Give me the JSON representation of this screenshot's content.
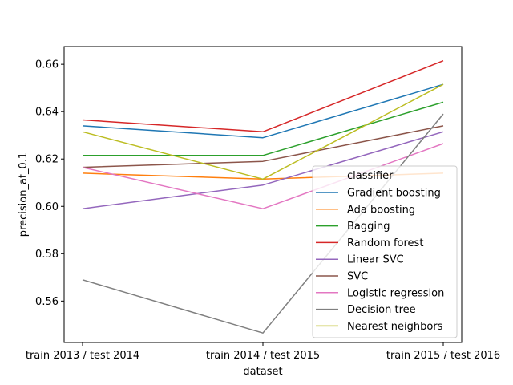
{
  "chart_data": {
    "type": "line",
    "title": "",
    "xlabel": "dataset",
    "ylabel": "precision_at_0.1",
    "categories": [
      "train 2013 / test 2014",
      "train 2014 / test 2015",
      "train 2015 / test 2016"
    ],
    "ylim": [
      0.5425,
      0.6675
    ],
    "yticks": [
      0.56,
      0.58,
      0.6,
      0.62,
      0.64,
      0.66
    ],
    "ytick_labels": [
      "0.56",
      "0.58",
      "0.60",
      "0.62",
      "0.64",
      "0.66"
    ],
    "grid": false,
    "legend_title": "classifier",
    "legend_position": "lower-right",
    "series": [
      {
        "name": "Gradient boosting",
        "color": "#1f77b4",
        "values": [
          0.634,
          0.629,
          0.6515
        ]
      },
      {
        "name": "Ada boosting",
        "color": "#ff7f0e",
        "values": [
          0.614,
          0.6115,
          0.614
        ]
      },
      {
        "name": "Bagging",
        "color": "#2ca02c",
        "values": [
          0.6215,
          0.6215,
          0.644
        ]
      },
      {
        "name": "Random forest",
        "color": "#d62728",
        "values": [
          0.6365,
          0.6315,
          0.6615
        ]
      },
      {
        "name": "Linear SVC",
        "color": "#9467bd",
        "values": [
          0.599,
          0.609,
          0.6315
        ]
      },
      {
        "name": "SVC",
        "color": "#8c564b",
        "values": [
          0.6165,
          0.619,
          0.634
        ]
      },
      {
        "name": "Logistic regression",
        "color": "#e377c2",
        "values": [
          0.6165,
          0.599,
          0.6265
        ]
      },
      {
        "name": "Decision tree",
        "color": "#7f7f7f",
        "values": [
          0.569,
          0.5465,
          0.639
        ]
      },
      {
        "name": "Nearest neighbors",
        "color": "#bcbd22",
        "values": [
          0.6315,
          0.6115,
          0.6515
        ]
      }
    ]
  }
}
